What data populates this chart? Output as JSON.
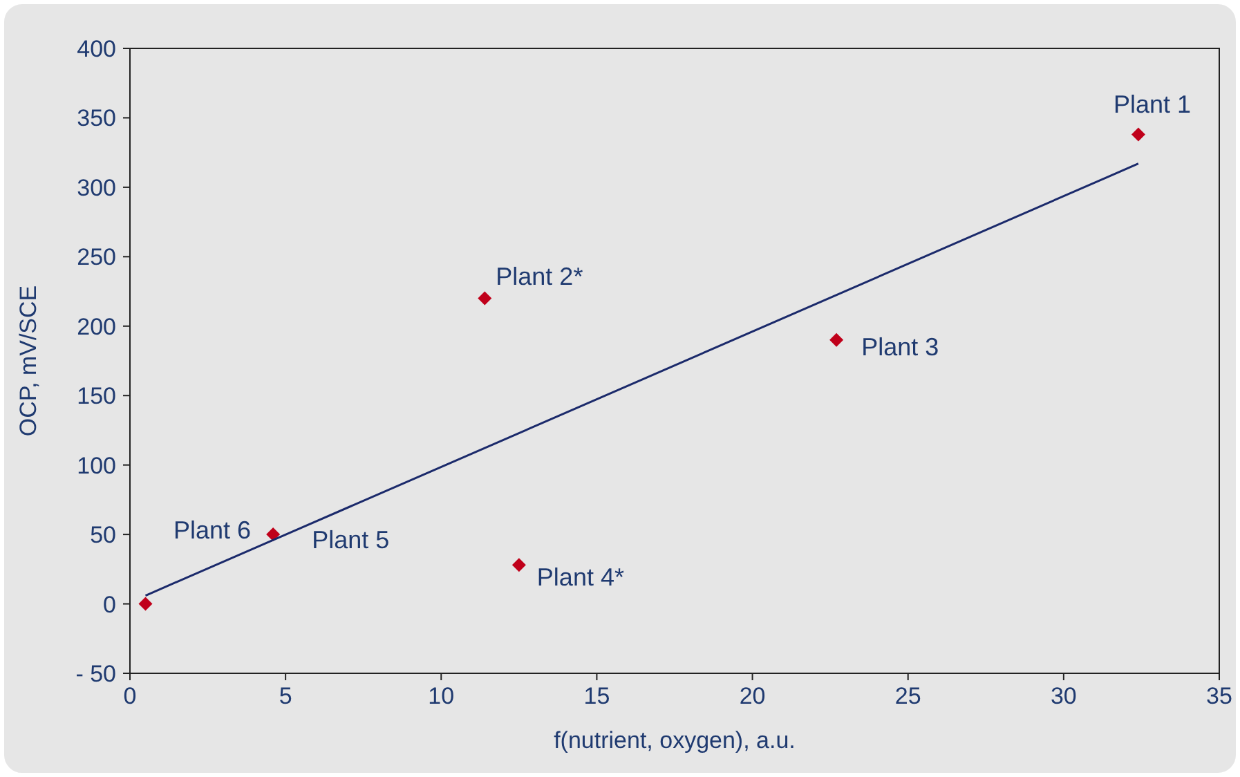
{
  "chart_data": {
    "type": "scatter",
    "xlabel": "f(nutrient, oxygen), a.u.",
    "ylabel": "OCP, mV/SCE",
    "xlim": [
      0,
      35
    ],
    "xticks": [
      0,
      5,
      10,
      15,
      20,
      25,
      30,
      35
    ],
    "ylim": [
      -50,
      400
    ],
    "yticks": [
      {
        "value": -50,
        "label": "- 50"
      },
      0,
      50,
      100,
      150,
      200,
      250,
      300,
      350,
      400
    ],
    "grid": false,
    "marker": "diamond",
    "series": [
      {
        "color": "#c0001a",
        "x": [
          32.4,
          11.4,
          22.7,
          12.5,
          4.6,
          0.5
        ],
        "values": [
          338,
          220,
          190,
          28,
          50,
          0
        ]
      },
      {
        "type": "line",
        "color": "#1b2a6b",
        "x": [
          0.5,
          32.4
        ],
        "values": [
          6,
          317
        ],
        "line_style": "solid",
        "marker": "none"
      }
    ],
    "annotations": [
      {
        "text": "Plant 1",
        "x": 32.4,
        "y": 338
      },
      {
        "text": "Plant 2*",
        "x": 11.4,
        "y": 220
      },
      {
        "text": "Plant 3",
        "x": 22.7,
        "y": 190
      },
      {
        "text": "Plant 4*",
        "x": 12.5,
        "y": 28
      },
      {
        "text": "Plant 5",
        "x": 4.6,
        "y": 50
      },
      {
        "text": "Plant 6",
        "x": 4.6,
        "y": 50
      }
    ]
  }
}
